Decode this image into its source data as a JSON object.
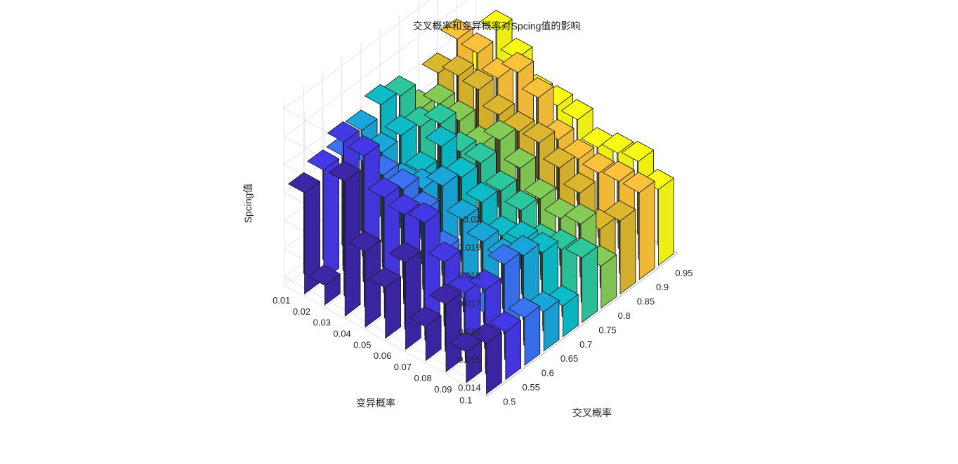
{
  "chart_data": {
    "type": "bar3",
    "title": "交叉概率和变异概率对Spcing值的影响",
    "xlabel": "交叉概率",
    "ylabel": "变异概率",
    "zlabel": "Spcing值",
    "x": [
      "0.5",
      "0.55",
      "0.6",
      "0.65",
      "0.7",
      "0.75",
      "0.8",
      "0.85",
      "0.9",
      "0.95"
    ],
    "y": [
      "0.01",
      "0.02",
      "0.03",
      "0.04",
      "0.05",
      "0.06",
      "0.07",
      "0.08",
      "0.09",
      "0.1"
    ],
    "z_ticks": [
      "0.014",
      "0.015",
      "0.016",
      "0.017",
      "0.018",
      "0.019",
      "0.02"
    ],
    "zlim": [
      0.0137,
      0.0203
    ],
    "grid": true,
    "colormap": "parula",
    "values": [
      [
        0.0173,
        0.0176,
        0.0176,
        0.018,
        0.0184,
        0.0182,
        0.0172,
        0.018,
        0.0187,
        0.0171
      ],
      [
        0.0144,
        0.019,
        0.0178,
        0.0176,
        0.0177,
        0.0175,
        0.0178,
        0.0183,
        0.0186,
        0.0189
      ],
      [
        0.0185,
        0.0189,
        0.0177,
        0.0169,
        0.0168,
        0.018,
        0.0176,
        0.0182,
        0.0181,
        0.0183
      ],
      [
        0.0164,
        0.0178,
        0.0176,
        0.0171,
        0.0181,
        0.0174,
        0.0171,
        0.0177,
        0.0187,
        0.0174
      ],
      [
        0.0155,
        0.0176,
        0.0172,
        0.0176,
        0.0174,
        0.0174,
        0.0177,
        0.0175,
        0.0182,
        0.0174
      ],
      [
        0.0168,
        0.0177,
        0.0162,
        0.0168,
        0.0169,
        0.0168,
        0.0171,
        0.0175,
        0.0171,
        0.0173
      ],
      [
        0.0149,
        0.0167,
        0.0149,
        0.0164,
        0.0161,
        0.0165,
        0.0164,
        0.017,
        0.0168,
        0.0167
      ],
      [
        0.0161,
        0.016,
        0.0148,
        0.0162,
        0.0163,
        0.0157,
        0.0161,
        0.0165,
        0.0167,
        0.0169
      ],
      [
        0.0148,
        0.0165,
        0.0169,
        0.0167,
        0.0163,
        0.0159,
        0.0163,
        0.0156,
        0.0168,
        0.017
      ],
      [
        0.0155,
        0.0154,
        0.0154,
        0.0151,
        0.0148,
        0.016,
        0.0152,
        0.0163,
        0.0168,
        0.0164
      ]
    ]
  }
}
